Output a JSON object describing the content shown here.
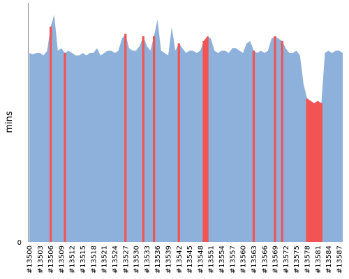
{
  "chart_data": {
    "type": "area",
    "title": "",
    "xlabel": "",
    "ylabel": "mins",
    "ylim": [
      0,
      100
    ],
    "y_tick_labels": [
      "0"
    ],
    "x": [
      13500,
      13501,
      13502,
      13503,
      13504,
      13505,
      13506,
      13507,
      13508,
      13509,
      13510,
      13511,
      13512,
      13513,
      13514,
      13515,
      13516,
      13517,
      13518,
      13519,
      13520,
      13521,
      13522,
      13523,
      13524,
      13525,
      13526,
      13527,
      13528,
      13529,
      13530,
      13531,
      13532,
      13533,
      13534,
      13535,
      13536,
      13537,
      13538,
      13539,
      13540,
      13541,
      13542,
      13543,
      13544,
      13545,
      13546,
      13547,
      13548,
      13549,
      13550,
      13551,
      13552,
      13553,
      13554,
      13555,
      13556,
      13557,
      13558,
      13559,
      13560,
      13561,
      13562,
      13563,
      13564,
      13565,
      13566,
      13567,
      13568,
      13569,
      13570,
      13571,
      13572,
      13573,
      13574,
      13575,
      13576,
      13577,
      13578,
      13579,
      13580,
      13581,
      13582,
      13583,
      13584,
      13585,
      13586,
      13587,
      13588
    ],
    "x_tick_labels": [
      "#13500",
      "#13503",
      "#13506",
      "#13509",
      "#13512",
      "#13515",
      "#13518",
      "#13521",
      "#13524",
      "#13527",
      "#13530",
      "#13533",
      "#13536",
      "#13539",
      "#13542",
      "#13545",
      "#13548",
      "#13551",
      "#13554",
      "#13557",
      "#13560",
      "#13563",
      "#13566",
      "#13569",
      "#13572",
      "#13575",
      "#13578",
      "#13581",
      "#13584",
      "#13587"
    ],
    "series": [
      {
        "values": [
          79,
          78.5,
          79,
          79,
          78,
          80,
          90,
          95,
          80,
          81,
          79,
          80,
          79,
          78,
          78,
          79,
          78,
          79,
          79,
          81,
          78,
          79,
          80,
          80,
          79,
          80,
          85,
          87,
          81,
          80,
          80,
          82,
          86,
          82,
          80,
          86,
          93,
          80,
          79,
          78,
          90,
          80,
          83,
          81,
          79,
          80,
          80,
          79,
          80,
          84,
          86,
          85,
          80,
          79,
          80,
          80,
          79,
          81,
          81,
          80,
          79,
          83,
          84,
          80,
          79,
          80,
          79,
          80,
          85,
          86,
          85,
          84,
          81,
          79,
          79,
          80,
          78,
          66,
          60,
          59,
          58,
          59,
          58,
          79,
          80,
          79,
          80,
          80,
          79
        ],
        "color": "#8eb1db"
      }
    ],
    "highlighted_runs": [
      13506,
      13510,
      13527,
      13532,
      13535,
      13542,
      13549,
      13550,
      13563,
      13569,
      13571,
      13578,
      13579,
      13580,
      13581,
      13582
    ],
    "highlight_color": "#f25454",
    "grid": false,
    "legend": "none"
  }
}
